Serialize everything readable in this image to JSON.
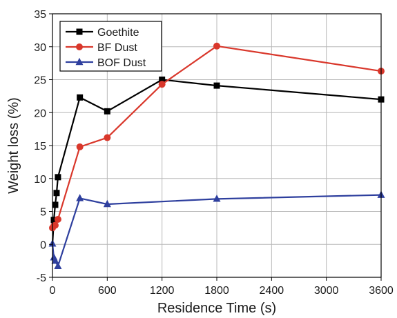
{
  "chart_data": {
    "type": "line",
    "title": "",
    "xlabel": "Residence Time (s)",
    "ylabel": "Weight loss (%)",
    "xlim": [
      0,
      3600
    ],
    "ylim": [
      -5,
      35
    ],
    "x_ticks": [
      0,
      600,
      1200,
      1800,
      2400,
      3000,
      3600
    ],
    "y_ticks": [
      -5,
      0,
      5,
      10,
      15,
      20,
      25,
      30,
      35
    ],
    "grid": true,
    "legend_position": "top-left",
    "series": [
      {
        "name": "Goethite",
        "color": "#000000",
        "marker": "square",
        "x": [
          0,
          15,
          30,
          45,
          60,
          300,
          600,
          1200,
          1800,
          3600
        ],
        "y": [
          0,
          3.7,
          6.0,
          7.8,
          10.2,
          22.3,
          20.2,
          25.0,
          24.1,
          22.0
        ]
      },
      {
        "name": "BF Dust",
        "color": "#d9372b",
        "marker": "circle",
        "x": [
          0,
          15,
          30,
          60,
          300,
          600,
          1200,
          1800,
          3600
        ],
        "y": [
          2.5,
          2.8,
          2.9,
          3.8,
          14.8,
          16.2,
          24.3,
          30.1,
          26.3
        ]
      },
      {
        "name": "BOF Dust",
        "color": "#2e3f9e",
        "marker": "triangle",
        "x": [
          0,
          15,
          30,
          60,
          300,
          600,
          1800,
          3600
        ],
        "y": [
          0.1,
          -2.0,
          -2.5,
          -3.3,
          7.0,
          6.1,
          6.9,
          7.5
        ]
      }
    ]
  }
}
